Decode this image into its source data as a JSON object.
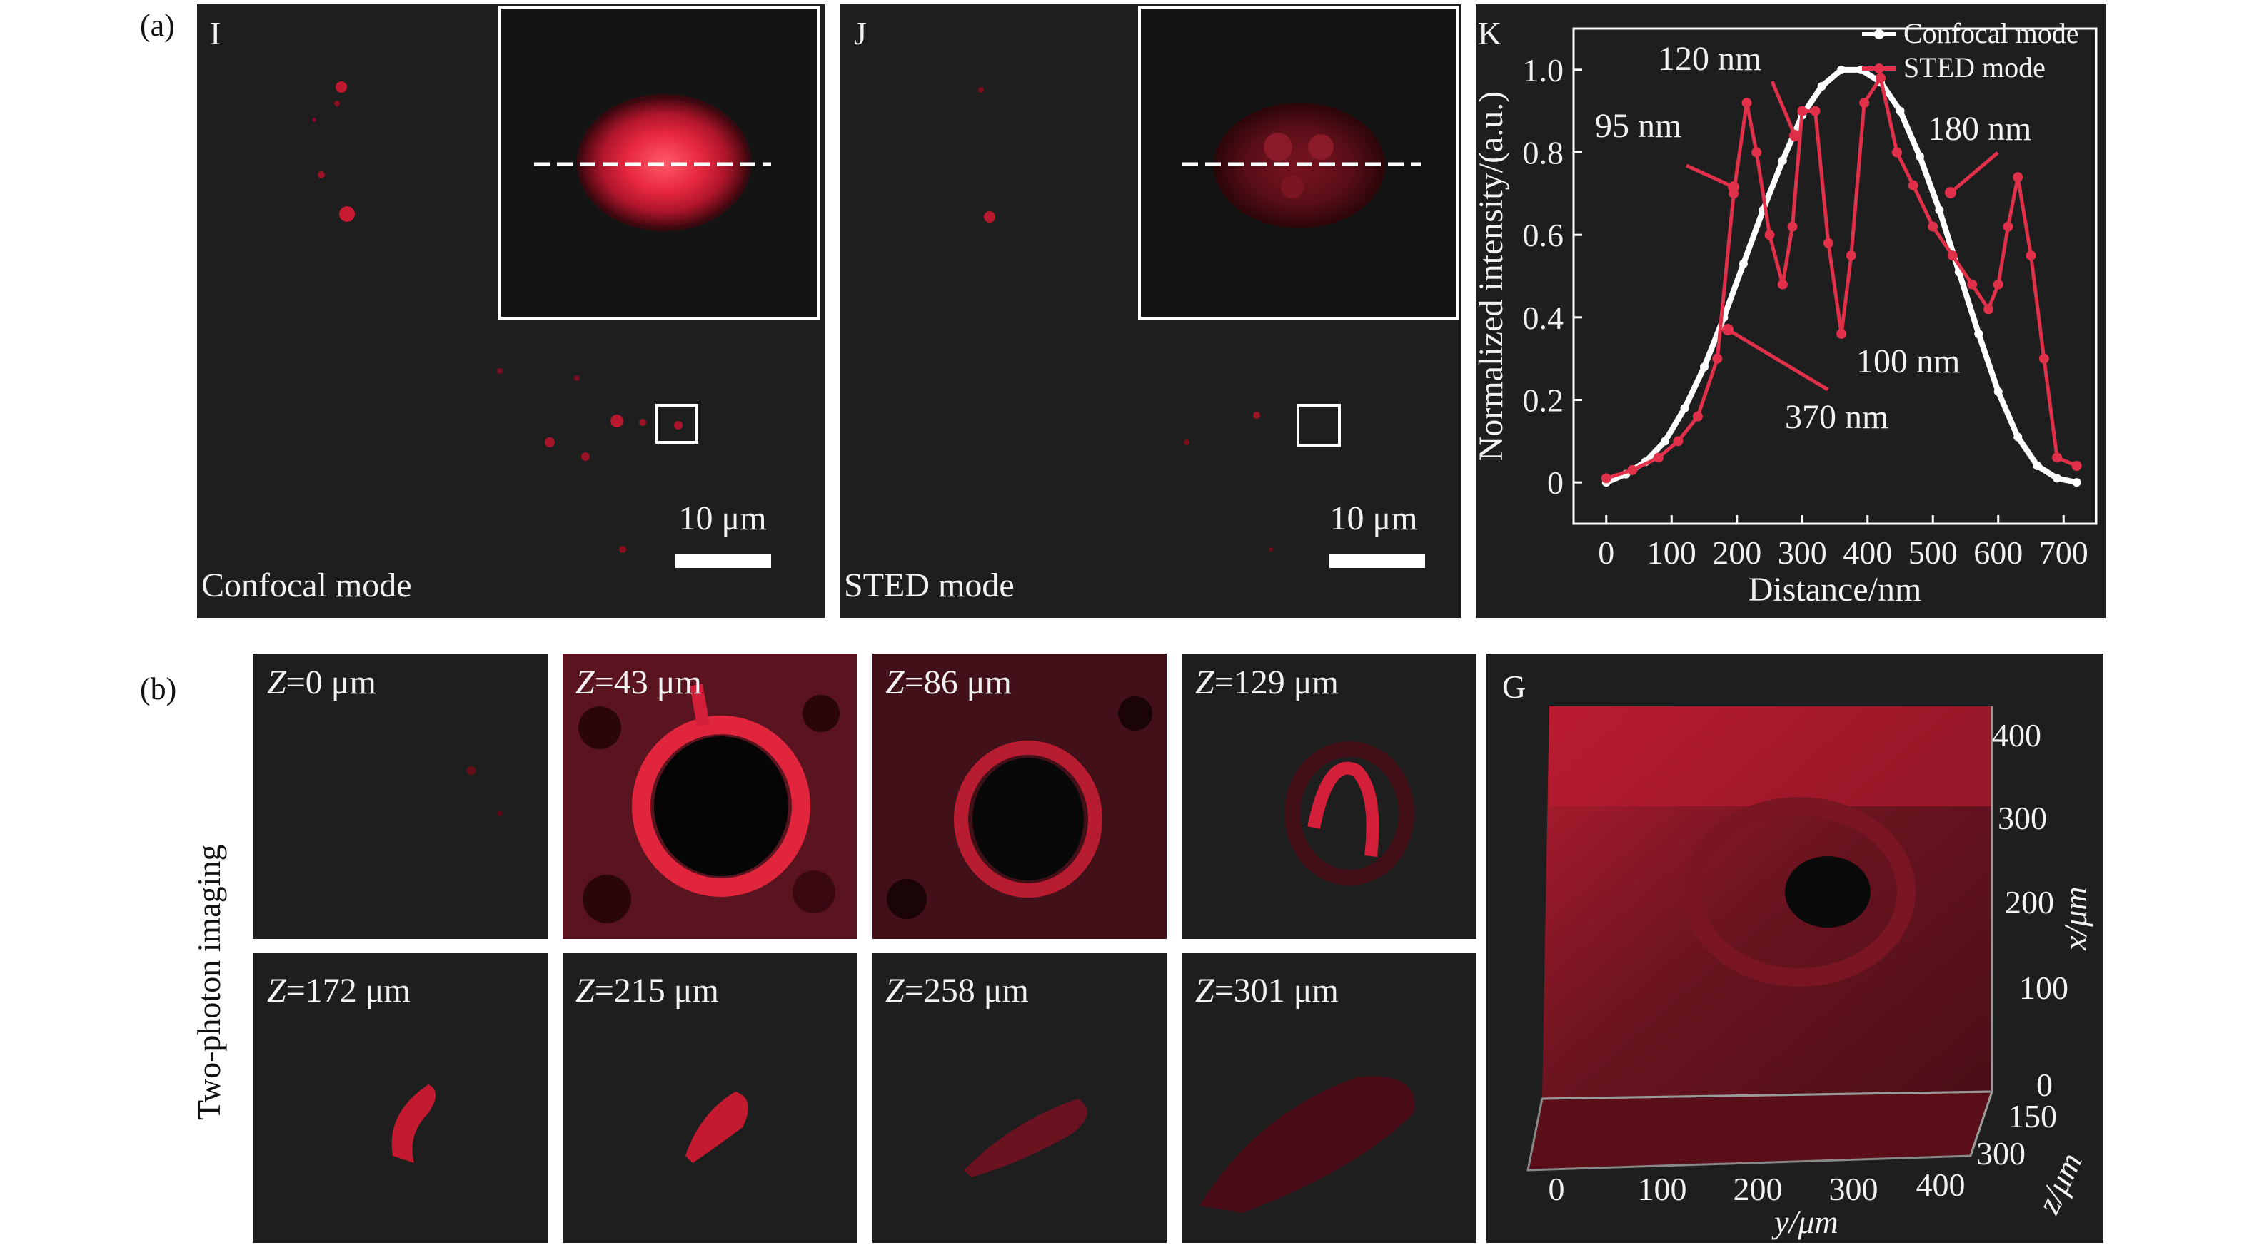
{
  "figure": {
    "part_a_label": "(a)",
    "part_b_label": "(b)",
    "two_photon_label": "Two-photon imaging"
  },
  "panel_I": {
    "letter": "I",
    "mode": "Confocal mode",
    "scalebar": "10 μm"
  },
  "panel_J": {
    "letter": "J",
    "mode": "STED mode",
    "scalebar": "10 μm"
  },
  "panel_G": {
    "letter": "G",
    "x_ticks": [
      "400",
      "300",
      "200",
      "100",
      "0"
    ],
    "x_label": "x/μm",
    "y_ticks": [
      "0",
      "100",
      "200",
      "300",
      "400"
    ],
    "y_label": "y/μm",
    "z_ticks": [
      "150",
      "300"
    ],
    "z_label": "z/μm"
  },
  "z_slices": [
    {
      "z": "Z",
      "value": "=0 μm"
    },
    {
      "z": "Z",
      "value": "=43 μm"
    },
    {
      "z": "Z",
      "value": "=86 μm"
    },
    {
      "z": "Z",
      "value": "=129 μm"
    },
    {
      "z": "Z",
      "value": "=172 μm"
    },
    {
      "z": "Z",
      "value": "=215 μm"
    },
    {
      "z": "Z",
      "value": "=258 μm"
    },
    {
      "z": "Z",
      "value": "=301 μm"
    }
  ],
  "colors": {
    "fluor": "#d41f3a",
    "panel": "#1e1e1e",
    "stroke": "#ffffff"
  },
  "chart_data": {
    "type": "line",
    "letter": "K",
    "xlabel": "Distance/nm",
    "ylabel": "Normalized intensity/(a.u.)",
    "xlim": [
      -50,
      750
    ],
    "ylim": [
      -0.1,
      1.1
    ],
    "x_ticks": [
      "0",
      "100",
      "200",
      "300",
      "400",
      "500",
      "600",
      "700"
    ],
    "y_ticks": [
      "0",
      "0.2",
      "0.4",
      "0.6",
      "0.8",
      "1.0"
    ],
    "legend_position": "top-right",
    "series": [
      {
        "name": "Confocal mode",
        "color": "#ffffff",
        "x": [
          0,
          30,
          60,
          90,
          120,
          150,
          180,
          210,
          240,
          270,
          300,
          330,
          360,
          390,
          420,
          450,
          480,
          510,
          540,
          570,
          600,
          630,
          660,
          690,
          720
        ],
        "y": [
          0.0,
          0.02,
          0.05,
          0.1,
          0.18,
          0.28,
          0.4,
          0.53,
          0.66,
          0.78,
          0.89,
          0.96,
          1.0,
          1.0,
          0.97,
          0.9,
          0.79,
          0.66,
          0.51,
          0.36,
          0.22,
          0.11,
          0.04,
          0.01,
          0.0
        ]
      },
      {
        "name": "STED mode",
        "color": "#e0304a",
        "x": [
          0,
          40,
          80,
          110,
          140,
          170,
          195,
          215,
          230,
          250,
          270,
          285,
          300,
          320,
          340,
          360,
          375,
          395,
          420,
          445,
          470,
          500,
          530,
          560,
          585,
          600,
          615,
          630,
          650,
          670,
          690,
          720
        ],
        "y": [
          0.01,
          0.03,
          0.06,
          0.1,
          0.16,
          0.3,
          0.7,
          0.92,
          0.8,
          0.6,
          0.48,
          0.62,
          0.9,
          0.9,
          0.58,
          0.36,
          0.55,
          0.92,
          0.98,
          0.8,
          0.72,
          0.62,
          0.55,
          0.48,
          0.42,
          0.48,
          0.62,
          0.74,
          0.55,
          0.3,
          0.06,
          0.04
        ]
      }
    ],
    "annotations": [
      "120 nm",
      "95 nm",
      "180 nm",
      "100 nm",
      "370 nm"
    ]
  }
}
